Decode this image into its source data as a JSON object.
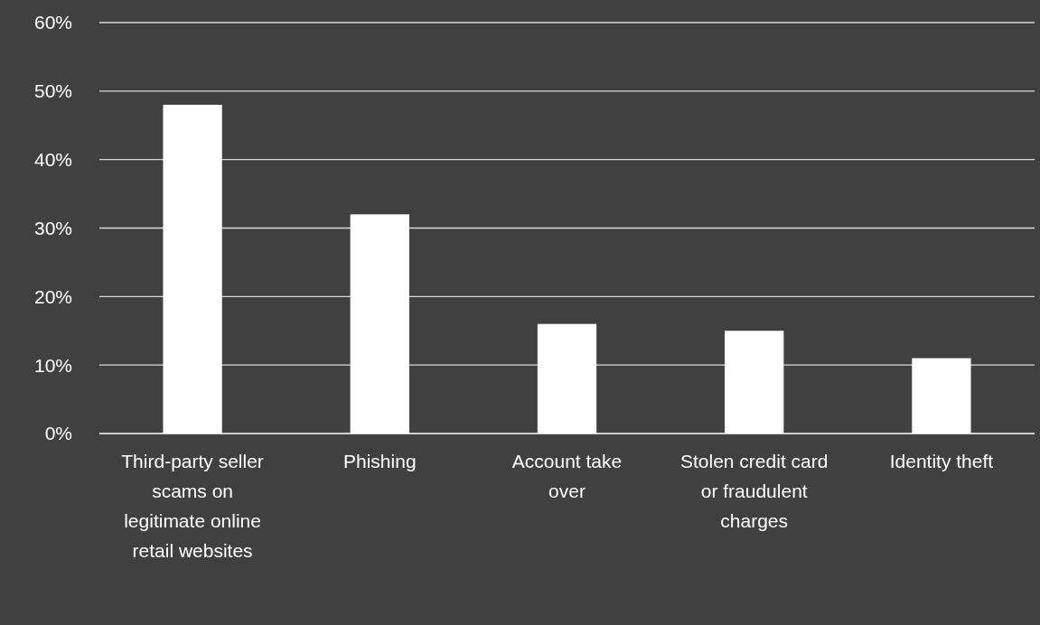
{
  "chart_data": {
    "type": "bar",
    "categories": [
      "Third-party seller scams on legitimate online retail websites",
      "Phishing",
      "Account take over",
      "Stolen credit card or fraudulent charges",
      "Identity theft"
    ],
    "values": [
      48,
      32,
      16,
      15,
      11
    ],
    "color": "#ffffff",
    "ylim": [
      0,
      60
    ],
    "yticks": [
      {
        "value": 0,
        "label": "0%"
      },
      {
        "value": 10,
        "label": "10%"
      },
      {
        "value": 20,
        "label": "20%"
      },
      {
        "value": 30,
        "label": "30%"
      },
      {
        "value": 40,
        "label": "40%"
      },
      {
        "value": 50,
        "label": "50%"
      },
      {
        "value": 60,
        "label": "60%"
      }
    ],
    "grid": "y"
  }
}
